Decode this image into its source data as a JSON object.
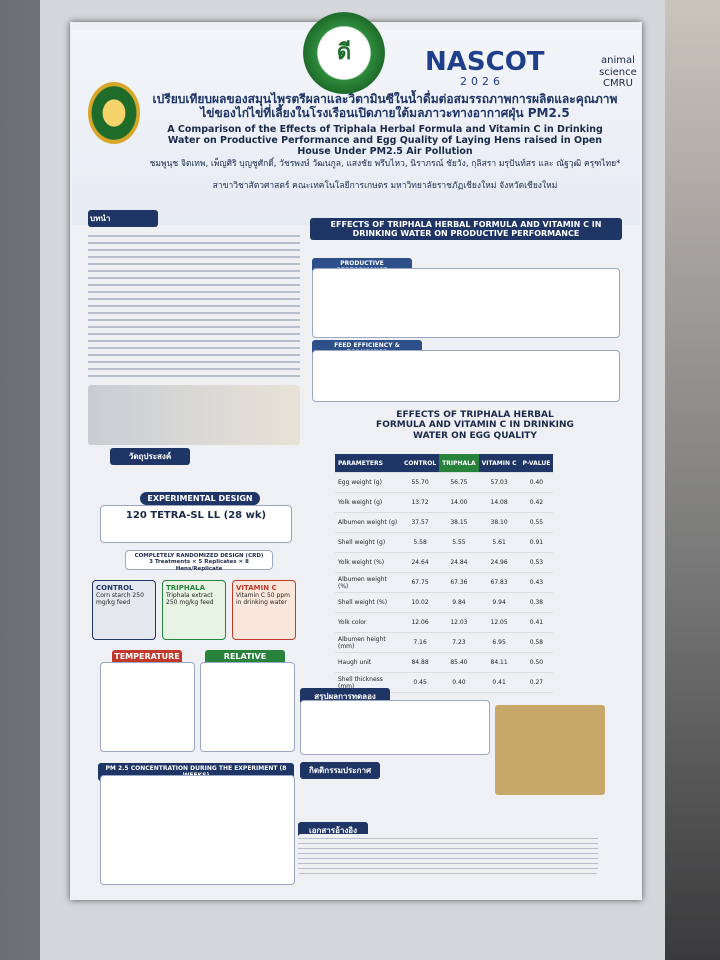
{
  "header": {
    "badge": "ดี",
    "logo": "NASCOT",
    "year": "2026",
    "dept": [
      "animal",
      "science",
      "CMRU"
    ],
    "title_th": "เปรียบเทียบผลของสมุนไพรตรีผลาและวิตามินซีในน้ำดื่มต่อสมรรถภาพการผลิตและคุณภาพไข่ของไก่ไข่ที่เลี้ยงในโรงเรือนเปิดภายใต้มลภาวะทางอากาศฝุ่น PM2.5",
    "title_en": "A Comparison of the Effects of Triphala Herbal Formula and Vitamin C in Drinking Water on Productive Performance and Egg Quality of Laying Hens raised in Open House Under PM2.5 Air Pollution",
    "authors": "ชมพูนุช จิตเทพ, เพ็ญศิริ บุญชูศักดิ์, วัชรพงษ์ วัฒนกูล, แสงชัย พรึบไหว, นิราภรณ์ ชัยวัง, กุลิสรา มรุปันท์สร และ ณัฐวุฒิ ครุฑไทย*",
    "affiliation": "สาขาวิชาสัตวศาสตร์ คณะเทคโนโลยีการเกษตร มหาวิทยาลัยราชภัฏเชียงใหม่ จังหวัดเชียงใหม่"
  },
  "left": {
    "intro": "บทนำ",
    "objective": "วัตถุประสงค์",
    "design": "EXPERIMENTAL DESIGN",
    "hens": "120 TETRA-SL LL (28 wk)",
    "crd": "COMPLETELY RANDOMIZED DESIGN (CRD)",
    "crd_sub": "3 Treatments × 5 Replicates × 8 Hens/Replicate",
    "treatments": [
      {
        "name": "CONTROL",
        "detail": "Corn starch 250 mg/kg feed"
      },
      {
        "name": "TRIPHALA",
        "detail": "Triphala extract 250 mg/kg feed"
      },
      {
        "name": "VITAMIN C",
        "detail": "Vitamin C 50 ppm in drinking water"
      }
    ],
    "temperature": "TEMPERATURE (°C)",
    "humidity": "RELATIVE HUMIDITY (RH %)",
    "pm": "PM 2.5 CONCENTRATION DURING THE EXPERIMENT (8 WEEKS)"
  },
  "performance": {
    "title": "EFFECTS OF TRIPHALA HERBAL FORMULA AND VITAMIN C IN DRINKING WATER ON PRODUCTIVE PERFORMANCE",
    "sec1": "PRODUCTIVE PERFORMANCE",
    "sec2": "FEED EFFICIENCY & ECONOMICS"
  },
  "egg_quality": {
    "title": "EFFECTS OF TRIPHALA HERBAL FORMULA AND VITAMIN C IN DRINKING WATER ON EGG QUALITY",
    "columns": [
      "PARAMETERS",
      "CONTROL",
      "TRIPHALA",
      "VITAMIN C",
      "P-VALUE"
    ],
    "rows": [
      [
        "Egg weight (g)",
        "55.70",
        "56.75",
        "57.03",
        "0.40"
      ],
      [
        "Yolk weight (g)",
        "13.72",
        "14.00",
        "14.08",
        "0.42"
      ],
      [
        "Albumen weight (g)",
        "37.57",
        "38.15",
        "38.10",
        "0.55"
      ],
      [
        "Shell weight (g)",
        "5.58",
        "5.55",
        "5.61",
        "0.91"
      ],
      [
        "Yolk weight (%)",
        "24.64",
        "24.84",
        "24.96",
        "0.53"
      ],
      [
        "Albumen weight (%)",
        "67.75",
        "67.36",
        "67.83",
        "0.43"
      ],
      [
        "Shell weight (%)",
        "10.02",
        "9.84",
        "9.94",
        "0.38"
      ],
      [
        "Yolk color",
        "12.06",
        "12.03",
        "12.05",
        "0.41"
      ],
      [
        "Albumen height (mm)",
        "7.16",
        "7.23",
        "6.95",
        "0.58"
      ],
      [
        "Haugh unit",
        "84.88",
        "85.40",
        "84.11",
        "0.50"
      ],
      [
        "Shell thickness (mm)",
        "0.45",
        "0.40",
        "0.41",
        "0.27"
      ]
    ]
  },
  "footer": {
    "conclusion": "สรุปผลการทดลอง",
    "acknowledgment": "กิตติกรรมประกาศ",
    "references": "เอกสารอ้างอิง"
  }
}
